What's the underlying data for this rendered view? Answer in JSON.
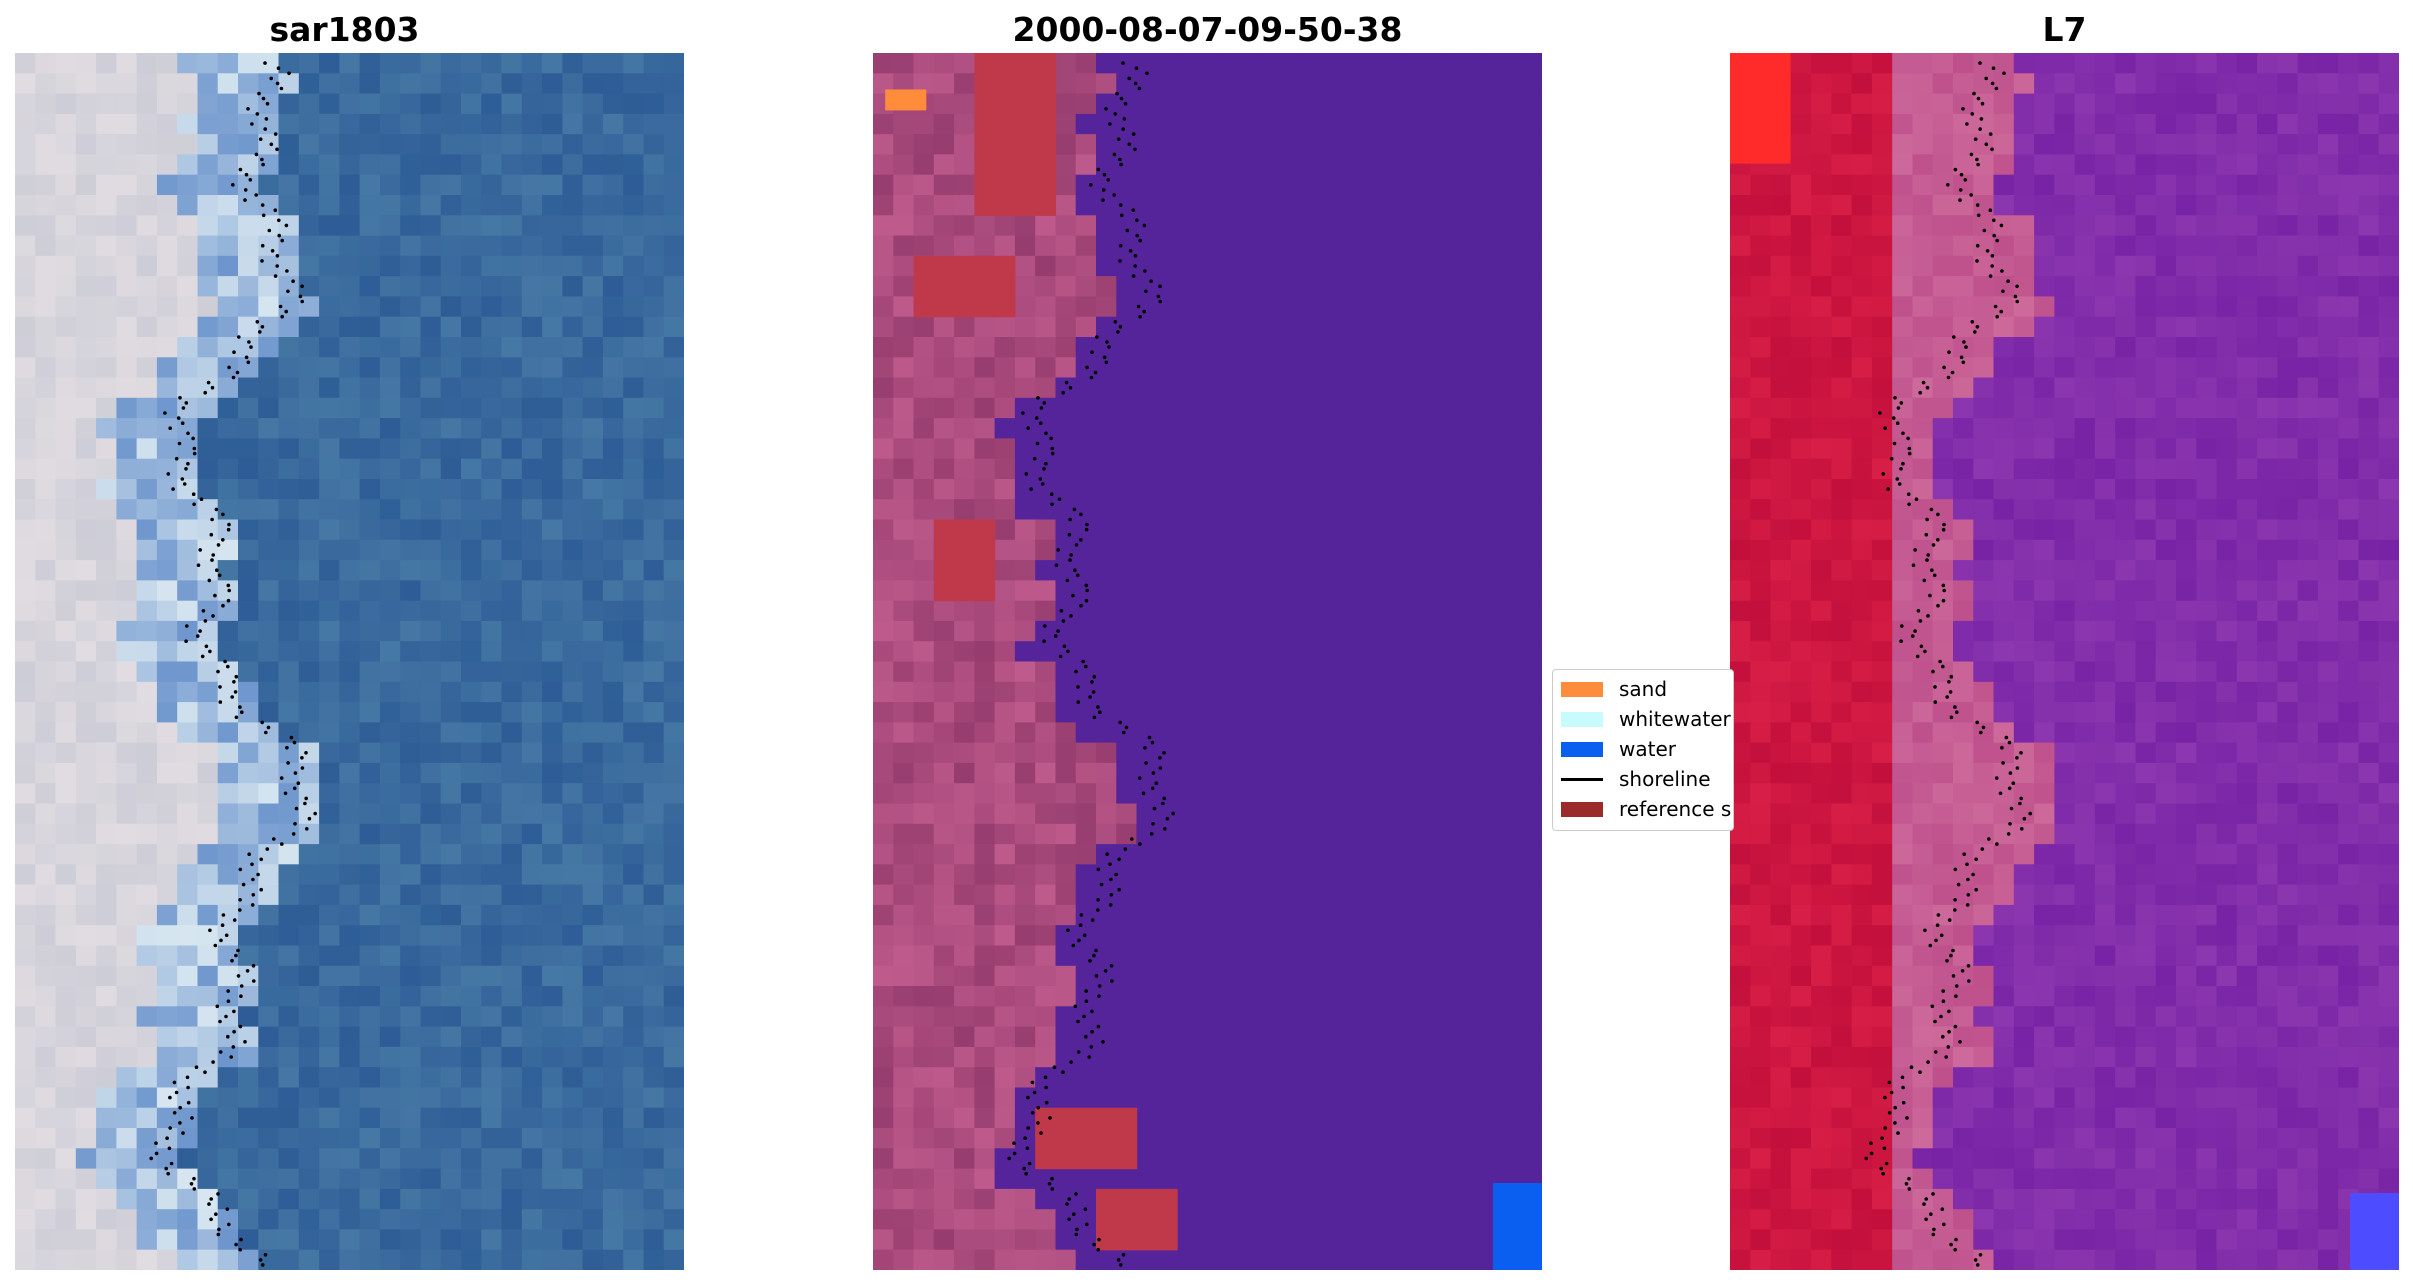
{
  "panels": [
    {
      "title": "sar1803",
      "image": "satellite-rgb-image"
    },
    {
      "title": "2000-08-07-09-50-38",
      "image": "classified-image"
    },
    {
      "title": "L7",
      "image": "false-color-image"
    }
  ],
  "legend": {
    "items": [
      {
        "label": "sand",
        "kind": "patch",
        "color": "#ff8c3a"
      },
      {
        "label": "whitewater",
        "kind": "patch",
        "color": "#c8fbfb"
      },
      {
        "label": "water",
        "kind": "patch",
        "color": "#0a5ef0"
      },
      {
        "label": "shoreline",
        "kind": "line",
        "color": "#000000"
      },
      {
        "label": "reference shoreline",
        "kind": "patch",
        "color": "#9b2a2a"
      }
    ]
  },
  "colors": {
    "land_rgb": "#c9c9d6",
    "water_rgb": "#33639a",
    "classified_land": "#b0507c",
    "classified_water": "#55249b",
    "false_color_land": "#c81440",
    "false_color_shore": "#c45a92",
    "false_color_water": "#7d24a6"
  }
}
